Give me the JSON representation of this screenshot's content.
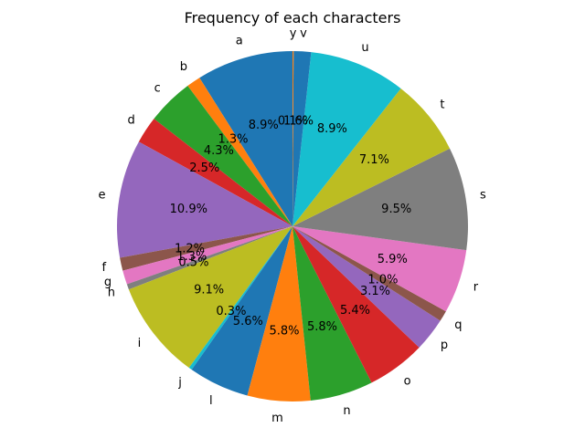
{
  "chart_data": {
    "type": "pie",
    "title": "Frequency of each characters",
    "start_angle_deg": 90,
    "direction": "counterclockwise",
    "slices": [
      {
        "label": "a",
        "value": 8.9,
        "pct_label": "8.9%",
        "color": "#1f77b4"
      },
      {
        "label": "b",
        "value": 1.3,
        "pct_label": "1.3%",
        "color": "#ff7f0e"
      },
      {
        "label": "c",
        "value": 4.3,
        "pct_label": "4.3%",
        "color": "#2ca02c"
      },
      {
        "label": "d",
        "value": 2.5,
        "pct_label": "2.5%",
        "color": "#d62728"
      },
      {
        "label": "e",
        "value": 10.9,
        "pct_label": "10.9%",
        "color": "#9467bd"
      },
      {
        "label": "f",
        "value": 1.2,
        "pct_label": "1.2%",
        "color": "#8c564b"
      },
      {
        "label": "g",
        "value": 1.3,
        "pct_label": "1.3%",
        "color": "#e377c2"
      },
      {
        "label": "h",
        "value": 0.5,
        "pct_label": "0.5%",
        "color": "#7f7f7f"
      },
      {
        "label": "i",
        "value": 9.1,
        "pct_label": "9.1%",
        "color": "#bcbd22"
      },
      {
        "label": "j",
        "value": 0.3,
        "pct_label": "0.3%",
        "color": "#17becf"
      },
      {
        "label": "l",
        "value": 5.6,
        "pct_label": "5.6%",
        "color": "#1f77b4"
      },
      {
        "label": "m",
        "value": 5.8,
        "pct_label": "5.8%",
        "color": "#ff7f0e"
      },
      {
        "label": "n",
        "value": 5.8,
        "pct_label": "5.8%",
        "color": "#2ca02c"
      },
      {
        "label": "o",
        "value": 5.4,
        "pct_label": "5.4%",
        "color": "#d62728"
      },
      {
        "label": "p",
        "value": 3.1,
        "pct_label": "3.1%",
        "color": "#9467bd"
      },
      {
        "label": "q",
        "value": 1.0,
        "pct_label": "1.0%",
        "color": "#8c564b"
      },
      {
        "label": "r",
        "value": 5.9,
        "pct_label": "5.9%",
        "color": "#e377c2"
      },
      {
        "label": "s",
        "value": 9.5,
        "pct_label": "9.5%",
        "color": "#7f7f7f"
      },
      {
        "label": "t",
        "value": 7.1,
        "pct_label": "7.1%",
        "color": "#bcbd22"
      },
      {
        "label": "u",
        "value": 8.9,
        "pct_label": "8.9%",
        "color": "#17becf"
      },
      {
        "label": "v",
        "value": 1.6,
        "pct_label": "1.6%",
        "color": "#1f77b4"
      },
      {
        "label": "y",
        "value": 0.1,
        "pct_label": "0.1%",
        "color": "#ff7f0e"
      }
    ]
  }
}
